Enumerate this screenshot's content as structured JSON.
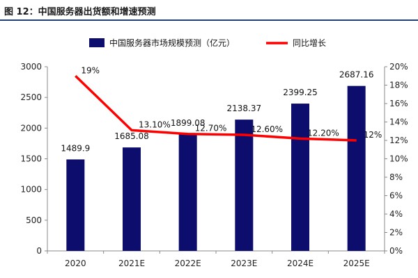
{
  "header": {
    "title": "图 12：中国服务器出货额和增速预测"
  },
  "colors": {
    "bar": "#0d0d6e",
    "line": "#ff0000",
    "title_rule": "#1f3f7a",
    "axis": "#888888"
  },
  "chart_data": {
    "type": "bar+line",
    "categories": [
      "2020",
      "2021E",
      "2022E",
      "2023E",
      "2024E",
      "2025E"
    ],
    "series": [
      {
        "name": "中国服务器市场规模预测（亿元）",
        "type": "bar",
        "axis": "left",
        "values": [
          1489.9,
          1685.08,
          1899.08,
          2138.37,
          2399.25,
          2687.16
        ],
        "labels": [
          "1489.9",
          "1685.08",
          "1899.08",
          "2138.37",
          "2399.25",
          "2687.16"
        ]
      },
      {
        "name": "同比增长",
        "type": "line",
        "axis": "right",
        "values": [
          19,
          13.1,
          12.7,
          12.6,
          12.2,
          12
        ],
        "labels": [
          "19%",
          "13.10%",
          "12.70%",
          "12.60%",
          "12.20%",
          "12%"
        ]
      }
    ],
    "y_left": {
      "min": 0,
      "max": 3000,
      "ticks": [
        "0",
        "500",
        "1000",
        "1500",
        "2000",
        "2500",
        "3000"
      ]
    },
    "y_right": {
      "min": 0,
      "max": 20,
      "ticks": [
        "0%",
        "2%",
        "4%",
        "6%",
        "8%",
        "10%",
        "12%",
        "14%",
        "16%",
        "18%",
        "20%"
      ]
    },
    "legend": {
      "position": "top"
    },
    "grid": false
  }
}
